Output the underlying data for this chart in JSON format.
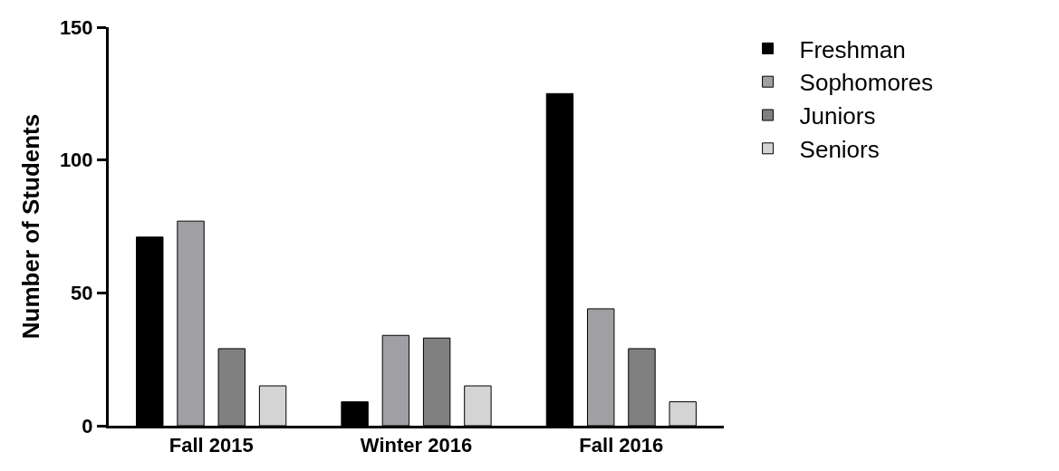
{
  "chart_data": {
    "type": "bar",
    "ylabel": "Number of Students",
    "categories": [
      "Fall 2015",
      "Winter 2016",
      "Fall 2016"
    ],
    "series": [
      {
        "name": "Freshman",
        "color": "#000000",
        "values": [
          71,
          9,
          125
        ]
      },
      {
        "name": "Sophomores",
        "color": "#a0a0a4",
        "values": [
          77,
          34,
          44
        ]
      },
      {
        "name": "Juniors",
        "color": "#808080",
        "values": [
          29,
          33,
          29
        ]
      },
      {
        "name": "Seniors",
        "color": "#d4d4d4",
        "values": [
          15,
          15,
          9
        ]
      }
    ],
    "ylim": [
      0,
      150
    ],
    "yticks": [
      0,
      50,
      100,
      150
    ],
    "legend": "top right"
  }
}
